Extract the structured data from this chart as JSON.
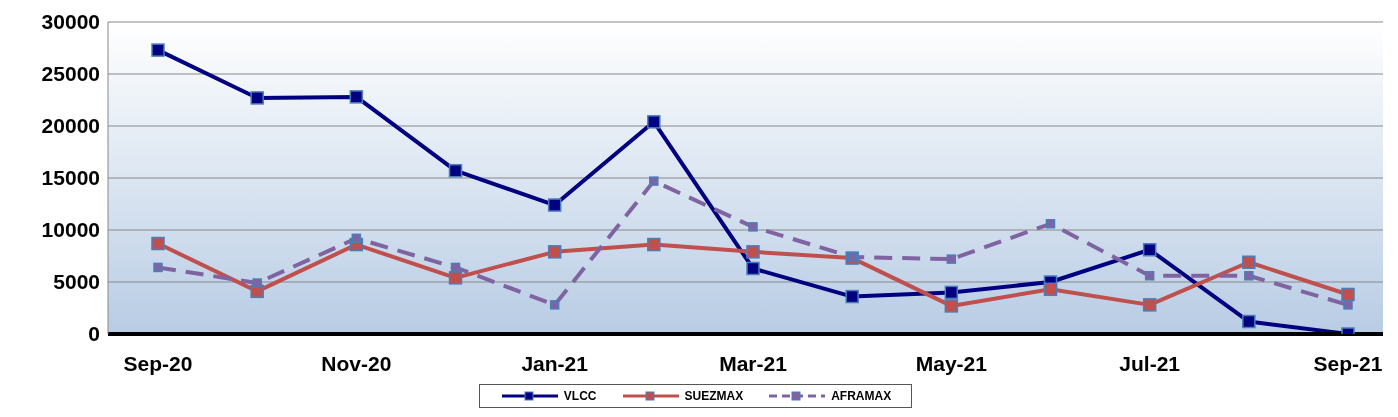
{
  "chart_data": {
    "type": "line",
    "categories": [
      "Sep-20",
      null,
      "Nov-20",
      null,
      "Jan-21",
      null,
      "Mar-21",
      null,
      "May-21",
      null,
      "Jul-21",
      null,
      "Sep-21"
    ],
    "series": [
      {
        "name": "VLCC",
        "color": "#000080",
        "line_style": "solid",
        "values": [
          27300,
          22700,
          22800,
          15700,
          12400,
          20400,
          6300,
          3600,
          4000,
          5000,
          8100,
          1200,
          0
        ]
      },
      {
        "name": "SUEZMAX",
        "color": "#c0504d",
        "line_style": "solid",
        "values": [
          8700,
          4100,
          8600,
          5400,
          7900,
          8600,
          7900,
          7300,
          2700,
          4300,
          2800,
          6900,
          3800
        ]
      },
      {
        "name": "AFRAMAX",
        "color": "#8064a2",
        "line_style": "dashed",
        "values": [
          6400,
          4900,
          9200,
          6400,
          2800,
          14700,
          10300,
          7400,
          7200,
          10600,
          5600,
          5600,
          2800
        ]
      }
    ],
    "ylim": [
      0,
      30000
    ],
    "yticks": [
      0,
      5000,
      10000,
      15000,
      20000,
      25000,
      30000
    ],
    "grid": "y",
    "legend": "bottom",
    "marker": "square"
  }
}
